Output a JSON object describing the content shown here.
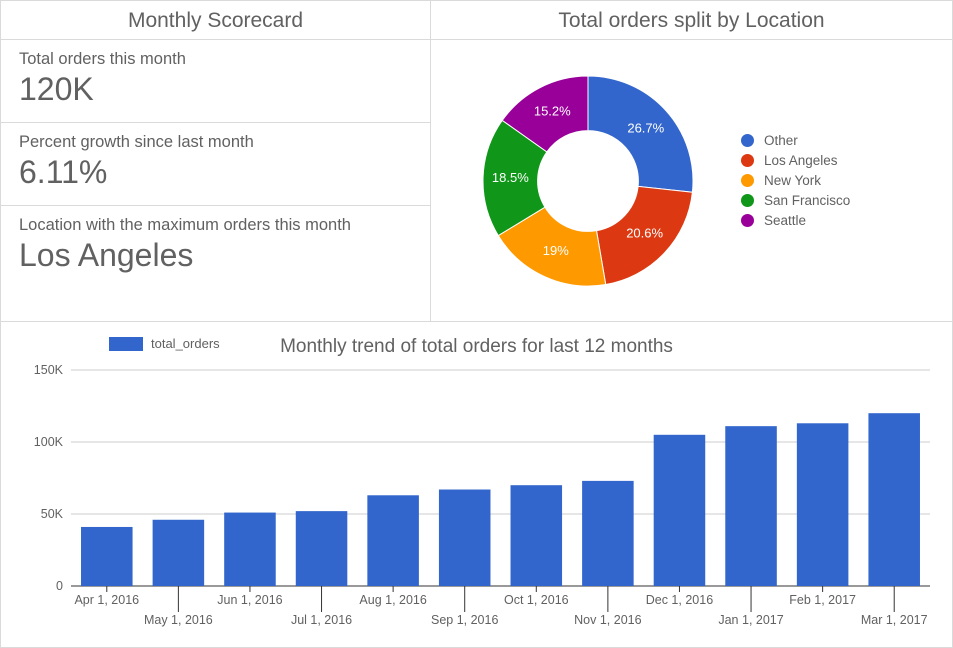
{
  "scorecard": {
    "title": "Monthly Scorecard",
    "cards": [
      {
        "label": "Total orders this month",
        "value": "120K"
      },
      {
        "label": "Percent growth since last month",
        "value": "6.11%"
      },
      {
        "label": "Location with the maximum orders this month",
        "value": "Los Angeles"
      }
    ]
  },
  "pie": {
    "title": "Total orders split by Location",
    "type": "donut",
    "inner_ratio": 0.48,
    "background_color": "#ffffff",
    "label_fontsize": 13,
    "label_color": "#ffffff",
    "legend_fontsize": 13.5,
    "slices": [
      {
        "label": "Other",
        "value": 26.7,
        "display": "26.7%",
        "color": "#3366cc"
      },
      {
        "label": "Los Angeles",
        "value": 20.6,
        "display": "20.6%",
        "color": "#dc3912"
      },
      {
        "label": "New York",
        "value": 19.0,
        "display": "19%",
        "color": "#ff9900"
      },
      {
        "label": "San Francisco",
        "value": 18.5,
        "display": "18.5%",
        "color": "#109618"
      },
      {
        "label": "Seattle",
        "value": 15.2,
        "display": "15.2%",
        "color": "#990099"
      }
    ]
  },
  "bar": {
    "title": "Monthly trend of total orders for last 12 months",
    "type": "bar",
    "series_label": "total_orders",
    "series_color": "#3366cc",
    "background_color": "#ffffff",
    "axis_color": "#333333",
    "grid_color": "#cccccc",
    "tick_fontsize": 12.5,
    "tick_color": "#616161",
    "ylim": [
      0,
      150000
    ],
    "yticks": [
      0,
      50000,
      100000,
      150000
    ],
    "ytick_labels": [
      "0",
      "50K",
      "100K",
      "150K"
    ],
    "bar_width_ratio": 0.72,
    "categories": [
      "Apr 1, 2016",
      "May 1, 2016",
      "Jun 1, 2016",
      "Jul 1, 2016",
      "Aug 1, 2016",
      "Sep 1, 2016",
      "Oct 1, 2016",
      "Nov 1, 2016",
      "Dec 1, 2016",
      "Jan 1, 2017",
      "Feb 1, 2017",
      "Mar 1, 2017"
    ],
    "values": [
      41000,
      46000,
      51000,
      52000,
      63000,
      67000,
      70000,
      73000,
      105000,
      111000,
      113000,
      120000
    ]
  }
}
